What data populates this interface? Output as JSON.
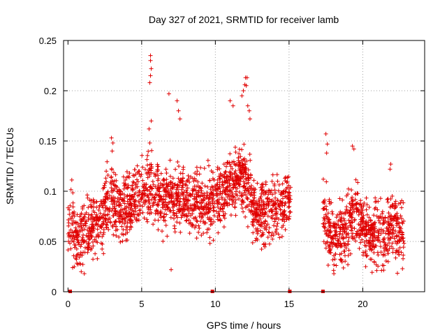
{
  "chart_data": {
    "type": "scatter",
    "title": "Day 327 of 2021, SRMTID for receiver lamb",
    "xlabel": "GPS time / hours",
    "ylabel": "SRMTID / TECUs",
    "xlim": [
      -0.3,
      24.2
    ],
    "ylim": [
      0,
      0.25
    ],
    "x_ticks": [
      0,
      5,
      10,
      15,
      20
    ],
    "x_tick_labels": [
      "0",
      "5",
      "10",
      "15",
      "20"
    ],
    "y_ticks": [
      0,
      0.05,
      0.1,
      0.15,
      0.2,
      0.25
    ],
    "y_tick_labels": [
      "0",
      "0.05",
      "0.1",
      "0.15",
      "0.2",
      "0.25"
    ],
    "grid": true,
    "marker": "plus",
    "series_color": "#e00000",
    "segments": [
      {
        "start": 0.0,
        "end": 15.1,
        "profile": [
          [
            0.0,
            0.07
          ],
          [
            0.7,
            0.055
          ],
          [
            1.5,
            0.06
          ],
          [
            2.5,
            0.08
          ],
          [
            3.0,
            0.095
          ],
          [
            3.5,
            0.075
          ],
          [
            4.2,
            0.085
          ],
          [
            5.0,
            0.1
          ],
          [
            5.6,
            0.105
          ],
          [
            6.5,
            0.09
          ],
          [
            7.5,
            0.095
          ],
          [
            8.5,
            0.09
          ],
          [
            9.5,
            0.085
          ],
          [
            10.5,
            0.1
          ],
          [
            11.3,
            0.11
          ],
          [
            12.0,
            0.12
          ],
          [
            12.6,
            0.08
          ],
          [
            13.5,
            0.08
          ],
          [
            14.5,
            0.085
          ],
          [
            15.1,
            0.09
          ]
        ]
      },
      {
        "start": 17.3,
        "end": 22.8,
        "profile": [
          [
            17.3,
            0.075
          ],
          [
            18.0,
            0.055
          ],
          [
            19.0,
            0.065
          ],
          [
            19.6,
            0.08
          ],
          [
            20.5,
            0.055
          ],
          [
            21.5,
            0.055
          ],
          [
            22.0,
            0.07
          ],
          [
            22.8,
            0.055
          ]
        ]
      }
    ],
    "spikes": [
      {
        "x": 5.6,
        "y": 0.235
      },
      {
        "x": 5.6,
        "y": 0.23
      },
      {
        "x": 5.65,
        "y": 0.222
      },
      {
        "x": 5.6,
        "y": 0.215
      },
      {
        "x": 5.55,
        "y": 0.208
      },
      {
        "x": 5.65,
        "y": 0.17
      },
      {
        "x": 5.5,
        "y": 0.162
      },
      {
        "x": 5.55,
        "y": 0.148
      },
      {
        "x": 6.85,
        "y": 0.197
      },
      {
        "x": 7.4,
        "y": 0.19
      },
      {
        "x": 7.5,
        "y": 0.18
      },
      {
        "x": 7.6,
        "y": 0.172
      },
      {
        "x": 2.95,
        "y": 0.153
      },
      {
        "x": 3.05,
        "y": 0.148
      },
      {
        "x": 3.0,
        "y": 0.14
      },
      {
        "x": 11.0,
        "y": 0.19
      },
      {
        "x": 11.2,
        "y": 0.185
      },
      {
        "x": 11.8,
        "y": 0.195
      },
      {
        "x": 11.9,
        "y": 0.2
      },
      {
        "x": 12.0,
        "y": 0.206
      },
      {
        "x": 12.05,
        "y": 0.213
      },
      {
        "x": 12.15,
        "y": 0.213
      },
      {
        "x": 12.1,
        "y": 0.205
      },
      {
        "x": 12.2,
        "y": 0.185
      },
      {
        "x": 12.3,
        "y": 0.18
      },
      {
        "x": 12.35,
        "y": 0.172
      },
      {
        "x": 17.5,
        "y": 0.157
      },
      {
        "x": 17.6,
        "y": 0.147
      },
      {
        "x": 17.55,
        "y": 0.138
      },
      {
        "x": 19.3,
        "y": 0.145
      },
      {
        "x": 19.4,
        "y": 0.142
      },
      {
        "x": 21.9,
        "y": 0.127
      },
      {
        "x": 21.85,
        "y": 0.122
      },
      {
        "x": 0.9,
        "y": 0.02
      },
      {
        "x": 7.0,
        "y": 0.022
      },
      {
        "x": 18.2,
        "y": 0.026
      },
      {
        "x": 20.2,
        "y": 0.025
      }
    ],
    "gap_markers": [
      0.15,
      9.8,
      15.05,
      17.3
    ]
  }
}
